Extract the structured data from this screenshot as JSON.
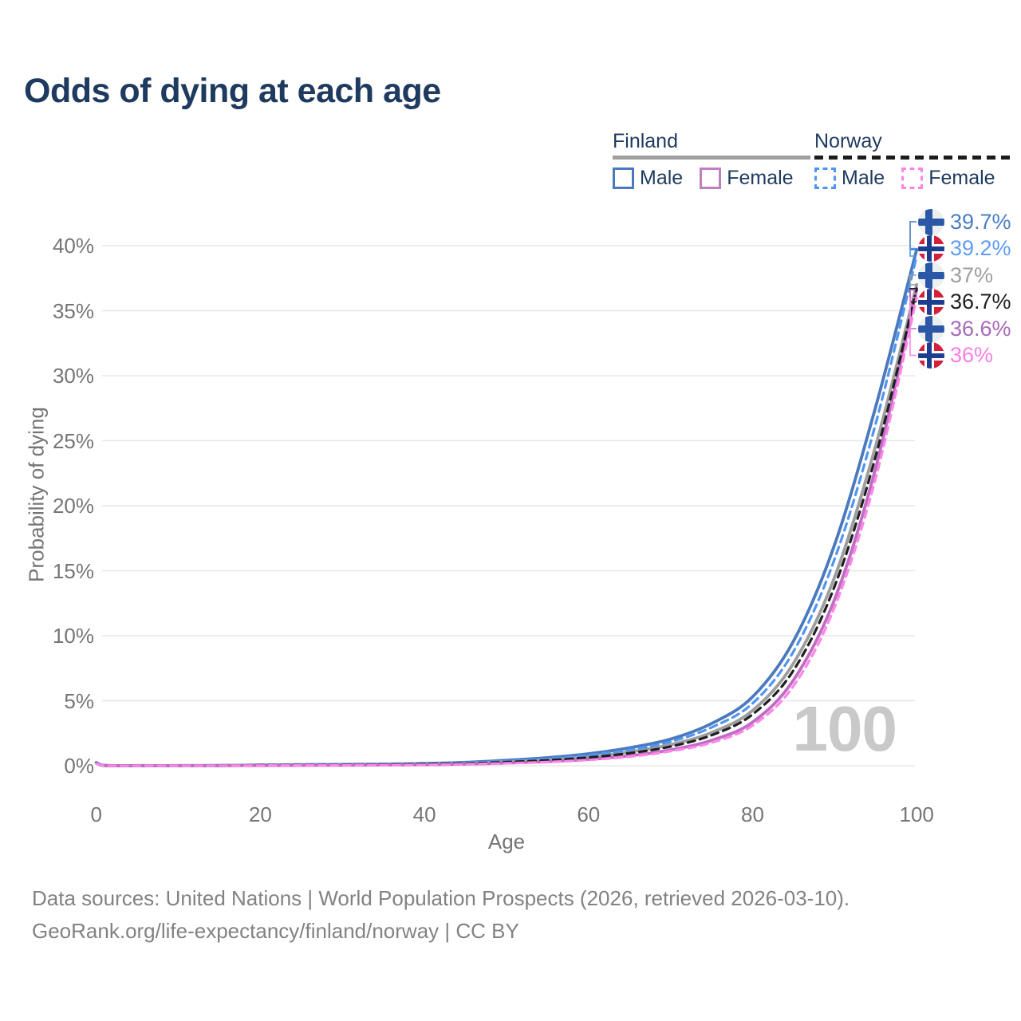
{
  "title": "Odds of dying at each age",
  "legend": {
    "groups": [
      {
        "label": "Finland",
        "underline_style": "solid",
        "underline_color": "#9e9e9e",
        "items": [
          {
            "label": "Male",
            "color": "#4a79bd",
            "dashed": false
          },
          {
            "label": "Female",
            "color": "#c17fc0",
            "dashed": false
          }
        ]
      },
      {
        "label": "Norway",
        "underline_style": "dashed",
        "underline_color": "#1c1c1c",
        "items": [
          {
            "label": "Male",
            "color": "#4f95f2",
            "dashed": true
          },
          {
            "label": "Female",
            "color": "#ff85e8",
            "dashed": true
          }
        ]
      }
    ]
  },
  "chart_data": {
    "type": "line",
    "title": "Odds of dying at each age",
    "xlabel": "Age",
    "ylabel": "Probability of dying",
    "xlim": [
      0,
      100
    ],
    "ylim": [
      0,
      40
    ],
    "x_ticks": [
      0,
      20,
      40,
      60,
      80,
      100
    ],
    "y_ticks": [
      0,
      5,
      10,
      15,
      20,
      25,
      30,
      35,
      40
    ],
    "y_tick_suffix": "%",
    "grid": "horizontal",
    "legend_position": "top-right",
    "age_indicator": "100",
    "x": [
      0,
      1,
      5,
      10,
      15,
      20,
      25,
      30,
      35,
      40,
      45,
      50,
      55,
      60,
      65,
      70,
      75,
      80,
      85,
      90,
      95,
      100
    ],
    "series": [
      {
        "name": "Finland male",
        "country": "Finland",
        "sex": "Male",
        "color": "#4a79bd",
        "dash": false,
        "end_label": "39.7%",
        "values": [
          0.25,
          0.03,
          0.01,
          0.01,
          0.02,
          0.06,
          0.08,
          0.1,
          0.13,
          0.17,
          0.26,
          0.42,
          0.62,
          0.92,
          1.38,
          2.05,
          3.25,
          5.3,
          9.6,
          17.0,
          27.6,
          39.7
        ]
      },
      {
        "name": "Norway male",
        "country": "Norway",
        "sex": "Male",
        "color": "#4f95f2",
        "dash": true,
        "end_label": "39.2%",
        "values": [
          0.22,
          0.03,
          0.01,
          0.01,
          0.02,
          0.05,
          0.07,
          0.09,
          0.11,
          0.15,
          0.23,
          0.36,
          0.54,
          0.82,
          1.22,
          1.85,
          2.95,
          4.8,
          8.8,
          15.9,
          26.3,
          39.2
        ]
      },
      {
        "name": "Finland both sexes",
        "country": "Finland",
        "sex": "Both",
        "color": "#9e9e9e",
        "dash": false,
        "end_label": "37%",
        "values": [
          0.22,
          0.02,
          0.008,
          0.008,
          0.015,
          0.04,
          0.055,
          0.07,
          0.09,
          0.13,
          0.19,
          0.31,
          0.47,
          0.7,
          1.07,
          1.62,
          2.55,
          4.25,
          7.9,
          14.5,
          24.6,
          37.0
        ]
      },
      {
        "name": "Norway both sexes",
        "country": "Norway",
        "sex": "Both",
        "color": "#1f1f1f",
        "dash": true,
        "end_label": "36.7%",
        "values": [
          0.2,
          0.02,
          0.008,
          0.008,
          0.015,
          0.035,
          0.05,
          0.065,
          0.085,
          0.12,
          0.17,
          0.28,
          0.42,
          0.63,
          0.97,
          1.48,
          2.35,
          3.95,
          7.35,
          13.8,
          23.8,
          36.7
        ]
      },
      {
        "name": "Finland female",
        "country": "Finland",
        "sex": "Female",
        "color": "#c06bc4",
        "dash": false,
        "end_label": "36.6%",
        "values": [
          0.2,
          0.02,
          0.007,
          0.007,
          0.01,
          0.02,
          0.03,
          0.045,
          0.06,
          0.08,
          0.13,
          0.21,
          0.32,
          0.49,
          0.77,
          1.22,
          1.95,
          3.35,
          6.6,
          12.8,
          22.9,
          36.6
        ]
      },
      {
        "name": "Norway female",
        "country": "Norway",
        "sex": "Female",
        "color": "#ff85e8",
        "dash": true,
        "end_label": "36%",
        "values": [
          0.18,
          0.02,
          0.007,
          0.007,
          0.01,
          0.02,
          0.03,
          0.04,
          0.055,
          0.075,
          0.12,
          0.19,
          0.29,
          0.45,
          0.7,
          1.12,
          1.78,
          3.1,
          6.15,
          12.2,
          22.1,
          36.0
        ]
      }
    ]
  },
  "end_labels": [
    {
      "flag": "finland",
      "value": "39.7%",
      "text_color": "#4a7ec4",
      "line_color": "#4a79bd"
    },
    {
      "flag": "norway",
      "value": "39.2%",
      "text_color": "#5f9df2",
      "line_color": "#4f95f2"
    },
    {
      "flag": "finland",
      "value": "37%",
      "text_color": "#9e9e9e",
      "line_color": "#9e9e9e"
    },
    {
      "flag": "norway",
      "value": "36.7%",
      "text_color": "#1f1f1f",
      "line_color": "#1f1f1f"
    },
    {
      "flag": "finland",
      "value": "36.6%",
      "text_color": "#a76ab8",
      "line_color": "#c06bc4"
    },
    {
      "flag": "norway",
      "value": "36%",
      "text_color": "#fb7de8",
      "line_color": "#ff85e8"
    }
  ],
  "watermark": "100",
  "footer": {
    "line1": "Data sources: United Nations | World Population Prospects (2026, retrieved 2026-03-10).",
    "line2": "GeoRank.org/life-expectancy/finland/norway | CC BY"
  }
}
